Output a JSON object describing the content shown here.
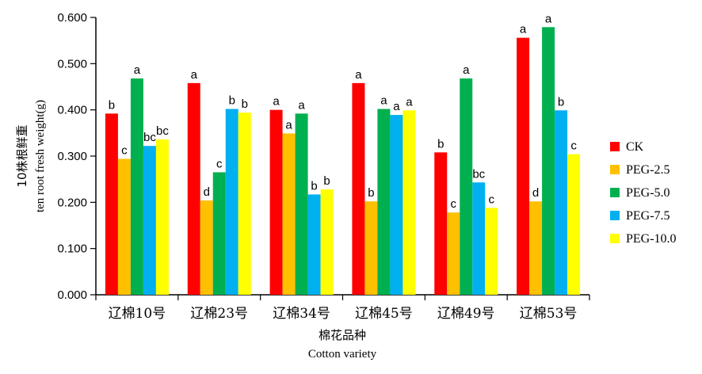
{
  "chart_data": {
    "type": "bar",
    "ylabel_cn": "10株根鲜重",
    "ylabel_en": "ten root fresh weight(g)",
    "xlabel_cn": "棉花品种",
    "xlabel_en": "Cotton variety",
    "ylim": [
      0,
      0.6
    ],
    "yticks": [
      "0.000",
      "0.100",
      "0.200",
      "0.300",
      "0.400",
      "0.500",
      "0.600"
    ],
    "categories": [
      "辽棉10号",
      "辽棉23号",
      "辽棉34号",
      "辽棉45号",
      "辽棉49号",
      "辽棉53号"
    ],
    "series": [
      {
        "name": "CK",
        "color": "#ff0000",
        "values": [
          0.392,
          0.458,
          0.4,
          0.458,
          0.308,
          0.556
        ],
        "labels": [
          "b",
          "a",
          "a",
          "a",
          "b",
          "a"
        ]
      },
      {
        "name": "PEG-2.5",
        "color": "#ffc000",
        "values": [
          0.294,
          0.204,
          0.349,
          0.202,
          0.178,
          0.202
        ],
        "labels": [
          "c",
          "d",
          "a",
          "b",
          "c",
          "d"
        ]
      },
      {
        "name": "PEG-5.0",
        "color": "#00b050",
        "values": [
          0.468,
          0.265,
          0.392,
          0.402,
          0.468,
          0.579
        ],
        "labels": [
          "a",
          "c",
          "a",
          "a",
          "a",
          "a"
        ]
      },
      {
        "name": "PEG-7.5",
        "color": "#00b0f0",
        "values": [
          0.322,
          0.402,
          0.217,
          0.389,
          0.243,
          0.399
        ],
        "labels": [
          "bc",
          "b",
          "b",
          "a",
          "bc",
          "b"
        ]
      },
      {
        "name": "PEG-10.0",
        "color": "#ffff00",
        "values": [
          0.336,
          0.394,
          0.228,
          0.399,
          0.188,
          0.304
        ],
        "labels": [
          "bc",
          "b",
          "b",
          "a",
          "c",
          "c"
        ]
      }
    ],
    "grid": false,
    "legend_position": "right"
  }
}
